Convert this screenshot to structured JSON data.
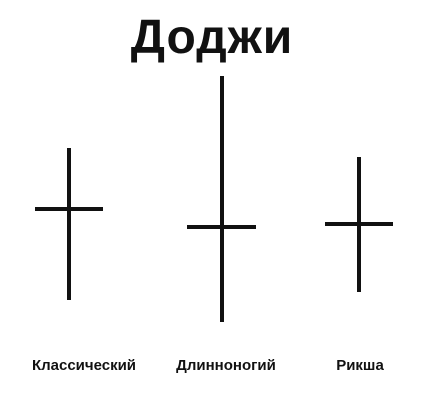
{
  "title": "Доджи",
  "candles": [
    {
      "id": "classic",
      "label": "Классический"
    },
    {
      "id": "long-legged",
      "label": "Длинноногий"
    },
    {
      "id": "rickshaw",
      "label": "Рикша"
    }
  ],
  "colors": {
    "stroke": "#111111",
    "background": "#ffffff"
  }
}
